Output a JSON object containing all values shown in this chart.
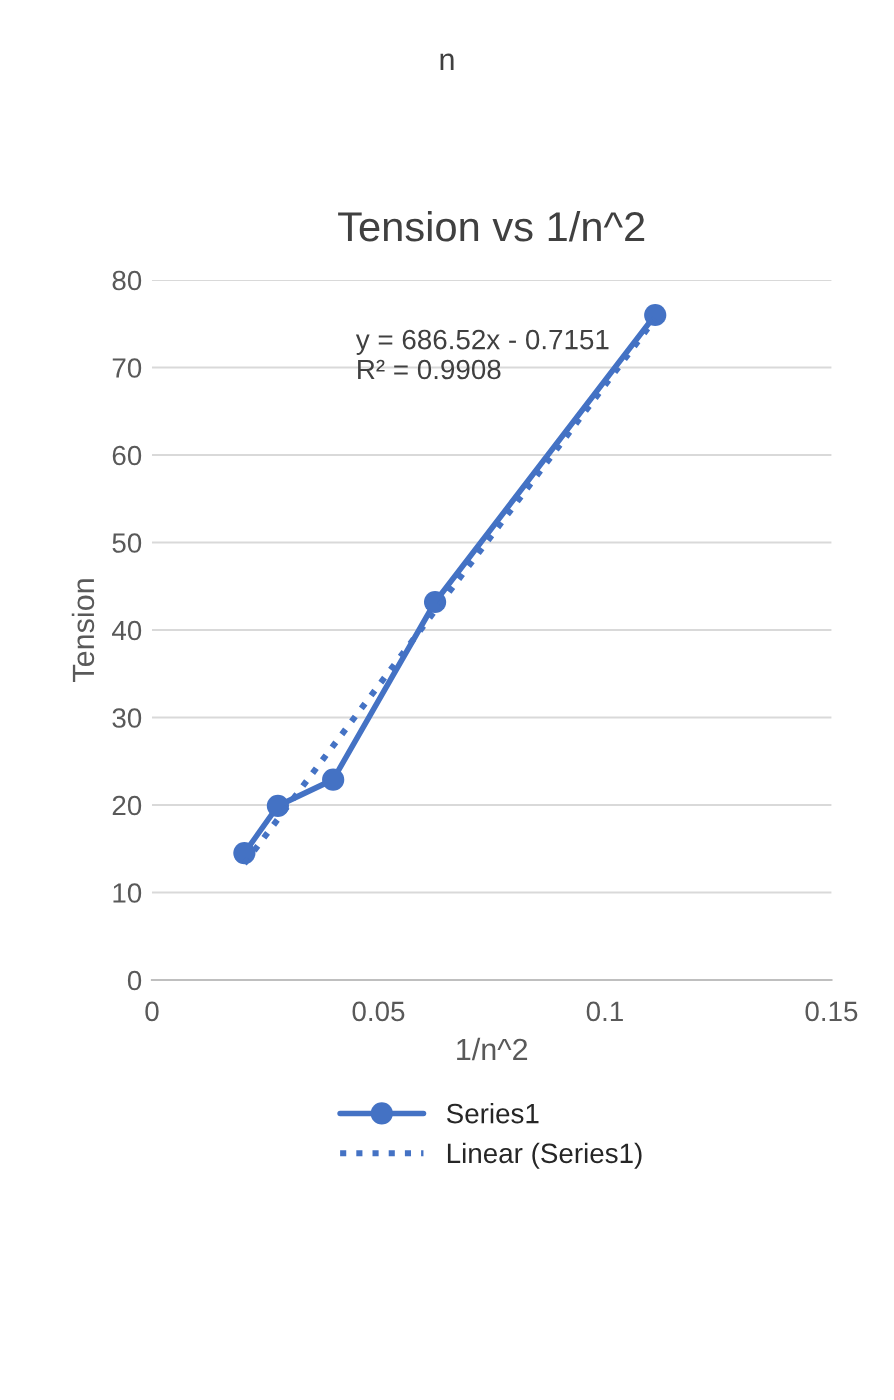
{
  "chart_data": {
    "type": "line",
    "title": "Tension vs 1/n^2",
    "xlabel": "1/n^2",
    "ylabel": "Tension",
    "x": [
      0.0204,
      0.0278,
      0.04,
      0.0625,
      0.1111
    ],
    "series": [
      {
        "name": "Series1",
        "color": "#4472c4",
        "values": [
          14.5,
          19.9,
          22.9,
          43.2,
          76.0
        ],
        "marker": "circle",
        "line_style": "solid"
      },
      {
        "name": "Linear (Series1)",
        "color": "#4472c4",
        "x": [
          0.0204,
          0.1111
        ],
        "values": [
          13.3,
          75.6
        ],
        "marker": "none",
        "line_style": "dotted"
      }
    ],
    "annotations": [
      "y = 686.52x - 0.7151\nR² = 0.9908",
      "n"
    ],
    "xlim": [
      0,
      0.15
    ],
    "xticks": [
      0,
      0.05,
      0.1,
      0.15
    ],
    "ylim": [
      0,
      80
    ],
    "yticks": [
      0,
      10,
      20,
      30,
      40,
      50,
      60,
      70,
      80
    ],
    "grid": "y",
    "legend": "bottom"
  }
}
